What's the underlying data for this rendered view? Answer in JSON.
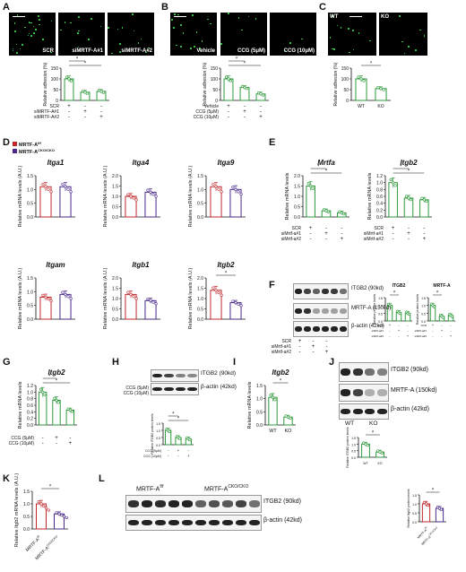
{
  "panels": {
    "A": {
      "label": "A",
      "images": [
        "SCR",
        "siMRTF-A#1",
        "siMRTF-A#2"
      ],
      "ylabel": "Relative adhesion (%)",
      "conditions": [
        "SCR",
        "siMRTF-A#1",
        "siMRTF-A#2"
      ],
      "signs": [
        [
          "+",
          "-",
          "-"
        ],
        [
          "-",
          "+",
          "-"
        ],
        [
          "-",
          "-",
          "+"
        ]
      ],
      "values": [
        100,
        38,
        42
      ],
      "ymax": 150
    },
    "B": {
      "label": "B",
      "images": [
        "Vehicle",
        "CCG (5μM)",
        "CCG (10μM)"
      ],
      "ylabel": "Relative adhesion (%)",
      "conditions": [
        "Vehicle",
        "CCG (5μM)",
        "CCG (10μM)"
      ],
      "signs": [
        [
          "+",
          "-",
          "-"
        ],
        [
          "-",
          "+",
          "-"
        ],
        [
          "-",
          "-",
          "+"
        ]
      ],
      "values": [
        100,
        60,
        30
      ],
      "ymax": 150
    },
    "C": {
      "label": "C",
      "images": [
        "WT",
        "KO"
      ],
      "ylabel": "Relative adhesion (%)",
      "xticks": [
        "WT",
        "KO"
      ],
      "values": [
        100,
        55
      ],
      "ymax": 150
    },
    "D": {
      "label": "D",
      "legend": [
        "MRTF-A",
        "MRTF-A"
      ],
      "legend_sup": [
        "f/f",
        "CKO/CKO"
      ],
      "ylabel": "Relative mRNA levels (A.U.)",
      "genes": [
        {
          "name": "Itga1",
          "values": [
            1.1,
            1.1
          ],
          "ymax": 1.5,
          "ticks": [
            "0.0",
            "0.5",
            "1.0",
            "1.5"
          ]
        },
        {
          "name": "Itga4",
          "values": [
            1.0,
            1.2
          ],
          "ymax": 2.0,
          "ticks": [
            "0.0",
            "0.5",
            "1.0",
            "1.5",
            "2.0"
          ]
        },
        {
          "name": "Itga9",
          "values": [
            1.1,
            1.0
          ],
          "ymax": 1.5,
          "ticks": [
            "0.0",
            "0.5",
            "1.0",
            "1.5"
          ]
        },
        {
          "name": "Itgam",
          "values": [
            0.8,
            0.9
          ],
          "ymax": 1.5,
          "ticks": [
            "0.0",
            "0.5",
            "1.0",
            "1.5"
          ]
        },
        {
          "name": "Itgb1",
          "values": [
            1.2,
            0.9
          ],
          "ymax": 2.0,
          "ticks": [
            "0.0",
            "0.5",
            "1.0",
            "1.5",
            "2.0"
          ]
        },
        {
          "name": "Itgb2",
          "values": [
            1.4,
            0.8
          ],
          "ymax": 2.0,
          "ticks": [
            "0.0",
            "0.5",
            "1.0",
            "1.5",
            "2.0"
          ]
        }
      ]
    },
    "E": {
      "label": "E",
      "ylabel": "Relative mRNA levels",
      "genes": [
        {
          "name": "Mrtfa",
          "values": [
            1.5,
            0.3,
            0.2
          ],
          "ymax": 2.0,
          "ticks": [
            "0.0",
            "0.5",
            "1.0",
            "1.5",
            "2.0"
          ]
        },
        {
          "name": "Itgb2",
          "values": [
            1.0,
            0.55,
            0.5
          ],
          "ymax": 1.2,
          "ticks": [
            "0.0",
            "0.2",
            "0.4",
            "0.6",
            "0.8",
            "1.0",
            "1.2"
          ]
        }
      ],
      "conditions": [
        "SCR",
        "siMrtf-a#1",
        "siMrtf-a#2"
      ]
    },
    "F": {
      "label": "F",
      "bands": [
        "ITGB2 (90kd)",
        "MRTF-A (150kd)",
        "β-actin (42kd)"
      ],
      "conditions": [
        "SCR",
        "siMrtf-a#1",
        "siMrtf-a#2"
      ],
      "charts": [
        {
          "title": "ITGB2",
          "values": [
            1.0,
            0.55,
            0.5
          ]
        },
        {
          "title": "MRTF-A",
          "values": [
            1.0,
            0.3,
            0.35
          ]
        }
      ],
      "ylabel": "Relative protein levels"
    },
    "G": {
      "label": "G",
      "gene": "Itgb2",
      "ylabel": "Relative mRNA levels",
      "values": [
        1.0,
        0.75,
        0.45
      ],
      "ymax": 1.2,
      "ticks": [
        "0.0",
        "0.2",
        "0.4",
        "0.6",
        "0.8",
        "1.0",
        "1.2"
      ],
      "conditions": [
        "CCG (5μM)",
        "CCG (10μM)"
      ]
    },
    "H": {
      "label": "H",
      "bands": [
        "ITGB2 (90kd)",
        "β-actin (42kd)"
      ],
      "conditions": [
        "CCG (5μM)",
        "CCG (10μM)"
      ],
      "values": [
        1.0,
        0.5,
        0.4
      ],
      "ylabel": "Relative ITGB2 protein levels"
    },
    "I": {
      "label": "I",
      "gene": "Itgb2",
      "ylabel": "Relative mRNA levels",
      "values": [
        1.05,
        0.3
      ],
      "ymax": 1.5,
      "ticks": [
        "0.0",
        "0.5",
        "1.0",
        "1.5"
      ],
      "xticks": [
        "WT",
        "KO"
      ]
    },
    "J": {
      "label": "J",
      "bands": [
        "ITGB2 (90kd)",
        "MRTF-A (150kd)",
        "β-actin (42kd)"
      ],
      "lanes": [
        "WT",
        "KO"
      ],
      "values": [
        1.0,
        0.4
      ],
      "ylabel": "Relative ITGB2 protein levels",
      "xticks": [
        "WT",
        "KO"
      ]
    },
    "K": {
      "label": "K",
      "ylabel": "Relative Itgb2 mRNA levels (A.U.)",
      "values": [
        1.0,
        0.6
      ],
      "ymax": 1.5,
      "ticks": [
        "0.0",
        "0.5",
        "1.0",
        "1.5"
      ]
    },
    "L": {
      "label": "L",
      "lanes": [
        "MRTF-A",
        "MRTF-A"
      ],
      "lane_sup": [
        "f/f",
        "CKO/CKO"
      ],
      "bands": [
        "ITGB2 (90kd)",
        "β-actin (42kd)"
      ],
      "values": [
        1.0,
        0.75
      ],
      "ylabel": "Relative Itgb2 protein levels",
      "xticks": [
        "MRTF-A",
        "MRTF-A"
      ]
    }
  },
  "significance": "*",
  "colors": {
    "green": "#2f9a3c",
    "red": "#c0282e",
    "purple": "#4a2a8a"
  }
}
